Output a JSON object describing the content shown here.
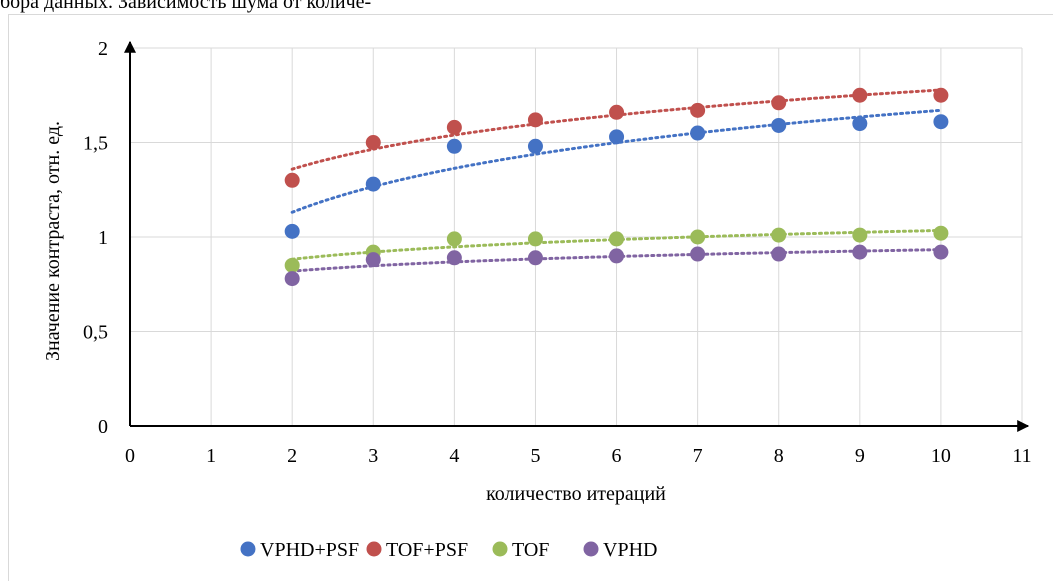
{
  "caption": "бора данных. Зависимость шума от количе-",
  "chart_data": {
    "type": "scatter",
    "title": "",
    "xlabel": "количество итераций",
    "ylabel": "Значение контраста, отн. ед.",
    "xlim": [
      0,
      11
    ],
    "ylim": [
      0,
      2
    ],
    "x_ticks": [
      "0",
      "1",
      "2",
      "3",
      "4",
      "5",
      "6",
      "7",
      "8",
      "9",
      "10",
      "11"
    ],
    "y_ticks": [
      "0",
      "0,5",
      "1",
      "1,5",
      "2"
    ],
    "grid": true,
    "legend_position": "bottom",
    "trendline": "logarithmic",
    "x": [
      2,
      3,
      4,
      5,
      6,
      7,
      8,
      9,
      10
    ],
    "series": [
      {
        "name": "VPHD+PSF",
        "color": "#4472c4",
        "values": [
          1.03,
          1.28,
          1.48,
          1.48,
          1.53,
          1.55,
          1.59,
          1.6,
          1.61
        ]
      },
      {
        "name": "TOF+PSF",
        "color": "#c0504d",
        "values": [
          1.3,
          1.5,
          1.58,
          1.62,
          1.66,
          1.67,
          1.71,
          1.75,
          1.75
        ]
      },
      {
        "name": "TOF",
        "color": "#9bbb59",
        "values": [
          0.85,
          0.92,
          0.99,
          0.99,
          0.99,
          1.0,
          1.01,
          1.01,
          1.02
        ]
      },
      {
        "name": "VPHD",
        "color": "#8064a2",
        "values": [
          0.78,
          0.88,
          0.89,
          0.89,
          0.9,
          0.91,
          0.91,
          0.92,
          0.92
        ]
      }
    ]
  }
}
